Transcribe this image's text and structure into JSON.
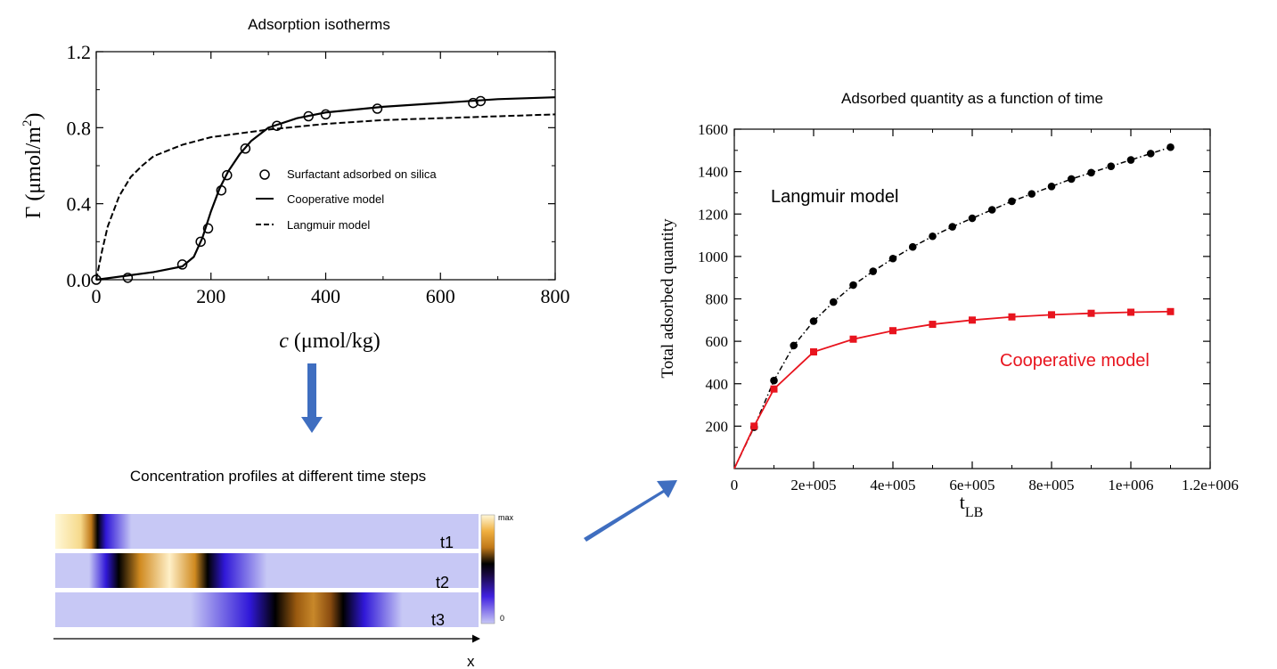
{
  "chart_data": [
    {
      "type": "line",
      "title": "Adsorption isotherms",
      "xlabel_italic": "c",
      "xlabel_unit": "(μmol/kg)",
      "ylabel": "Γ (μmol/m",
      "ylabel_sup": "2",
      "ylabel_tail": ")",
      "xlim": [
        0,
        800
      ],
      "ylim": [
        0,
        1.2
      ],
      "xticks": [
        "0",
        "200",
        "400",
        "600",
        "800"
      ],
      "xtick_values": [
        0,
        200,
        400,
        600,
        800
      ],
      "yticks": [
        "0.0",
        "0.4",
        "0.8",
        "1.2"
      ],
      "ytick_values": [
        0,
        0.4,
        0.8,
        1.2
      ],
      "legend_position": "center-right",
      "series": [
        {
          "name": "Surfactant adsorbed on silica",
          "style": "open-circles",
          "x": [
            0,
            55,
            150,
            182,
            195,
            218,
            228,
            260,
            315,
            370,
            400,
            490,
            657,
            670
          ],
          "y": [
            0.0,
            0.01,
            0.08,
            0.2,
            0.27,
            0.47,
            0.55,
            0.69,
            0.81,
            0.86,
            0.87,
            0.9,
            0.93,
            0.94
          ]
        },
        {
          "name": "Cooperative model",
          "style": "solid",
          "x": [
            0,
            50,
            100,
            150,
            170,
            185,
            200,
            215,
            230,
            250,
            270,
            300,
            350,
            400,
            500,
            600,
            700,
            800
          ],
          "y": [
            0.0,
            0.02,
            0.04,
            0.07,
            0.12,
            0.22,
            0.36,
            0.48,
            0.57,
            0.66,
            0.73,
            0.8,
            0.85,
            0.88,
            0.91,
            0.93,
            0.95,
            0.96
          ]
        },
        {
          "name": "Langmuir model",
          "style": "dashed",
          "x": [
            0,
            10,
            20,
            40,
            60,
            80,
            100,
            150,
            200,
            300,
            400,
            500,
            600,
            700,
            800
          ],
          "y": [
            0.0,
            0.15,
            0.28,
            0.44,
            0.54,
            0.6,
            0.65,
            0.71,
            0.75,
            0.79,
            0.82,
            0.84,
            0.85,
            0.86,
            0.87
          ]
        }
      ]
    },
    {
      "type": "heatmap",
      "title": "Concentration profiles at different time steps",
      "rows": [
        "t1",
        "t2",
        "t3"
      ],
      "colorbar_max": "max",
      "colorbar_min": "0",
      "xlabel": "x",
      "front_positions": [
        0.12,
        0.36,
        0.67
      ]
    },
    {
      "type": "line",
      "title": "Adsorbed quantity as a function of time",
      "ylabel": "Total adsorbed quantity",
      "xlabel": "t",
      "xlabel_sub": "LB",
      "xlim": [
        0,
        1200000
      ],
      "ylim": [
        0,
        1600
      ],
      "xticks": [
        "0",
        "2e+005",
        "4e+005",
        "6e+005",
        "8e+005",
        "1e+006",
        "1.2e+006"
      ],
      "xtick_values": [
        0,
        200000,
        400000,
        600000,
        800000,
        1000000,
        1200000
      ],
      "yticks": [
        "200",
        "400",
        "600",
        "800",
        "1000",
        "1200",
        "1400",
        "1600"
      ],
      "ytick_values": [
        200,
        400,
        600,
        800,
        1000,
        1200,
        1400,
        1600
      ],
      "series": [
        {
          "name": "Langmuir model",
          "label_color": "#000000",
          "color": "#000000",
          "marker": "circle",
          "style": "dash-dot",
          "x": [
            0,
            50000,
            100000,
            150000,
            200000,
            250000,
            300000,
            350000,
            400000,
            450000,
            500000,
            550000,
            600000,
            650000,
            700000,
            750000,
            800000,
            850000,
            900000,
            950000,
            1000000,
            1050000,
            1100000
          ],
          "y": [
            0,
            195,
            415,
            580,
            695,
            785,
            865,
            930,
            990,
            1045,
            1095,
            1140,
            1180,
            1220,
            1260,
            1295,
            1330,
            1365,
            1395,
            1425,
            1455,
            1485,
            1515
          ]
        },
        {
          "name": "Cooperative model",
          "label_color": "#e8141e",
          "color": "#e8141e",
          "marker": "square",
          "style": "solid",
          "x": [
            0,
            50000,
            100000,
            200000,
            300000,
            400000,
            500000,
            600000,
            700000,
            800000,
            900000,
            1000000,
            1100000
          ],
          "y": [
            0,
            200,
            375,
            550,
            610,
            650,
            680,
            700,
            715,
            725,
            732,
            737,
            740
          ]
        }
      ]
    }
  ],
  "colors": {
    "arrow": "#3f6ec0",
    "red": "#e8141e",
    "heatmap_bg": "#c7c8f5"
  }
}
